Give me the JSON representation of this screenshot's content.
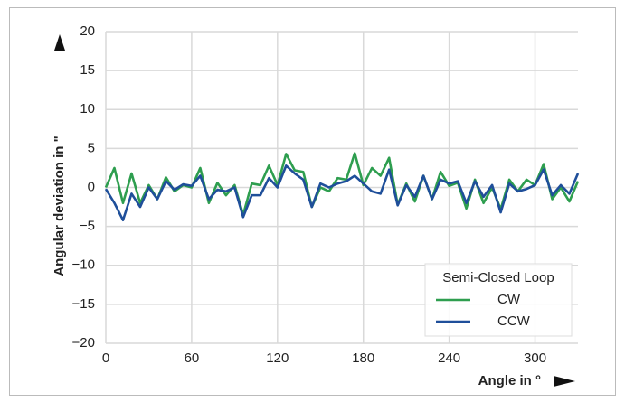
{
  "chart_data": {
    "type": "line",
    "y_label": "Angular deviation in \"",
    "x_label": "Angle in °",
    "legend_title": "Semi-Closed Loop",
    "legend_position": "lower right",
    "grid": true,
    "x": [
      0,
      6,
      12,
      18,
      24,
      30,
      36,
      42,
      48,
      54,
      60,
      66,
      72,
      78,
      84,
      90,
      96,
      102,
      108,
      114,
      120,
      126,
      132,
      138,
      144,
      150,
      156,
      162,
      168,
      174,
      180,
      186,
      192,
      198,
      204,
      210,
      216,
      222,
      228,
      234,
      240,
      246,
      252,
      258,
      264,
      270,
      276,
      282,
      288,
      294,
      300,
      306,
      312,
      318,
      324,
      330
    ],
    "xlim": [
      0,
      330
    ],
    "xticks": [
      0,
      60,
      120,
      180,
      240,
      300
    ],
    "ylim": [
      -20,
      20
    ],
    "yticks": [
      {
        "value": -20,
        "label": "−20"
      },
      {
        "value": -15,
        "label": "−15"
      },
      {
        "value": -10,
        "label": "−10"
      },
      {
        "value": -5,
        "label": "−5"
      },
      0,
      5,
      10,
      15,
      20
    ],
    "series": [
      {
        "name": "CW",
        "color": "#2e9e4f",
        "values": [
          0,
          2.5,
          -2,
          1.8,
          -2,
          0.3,
          -1.5,
          1.3,
          -0.5,
          0.3,
          0,
          2.5,
          -2,
          0.6,
          -1,
          0.3,
          -3.5,
          0.5,
          0.3,
          2.8,
          0.3,
          4.3,
          2.2,
          2,
          -2.5,
          0,
          -0.5,
          1.2,
          1,
          4.4,
          0.3,
          2.5,
          1.5,
          3.8,
          -2.2,
          0.5,
          -1.8,
          1.5,
          -1.5,
          2,
          0.2,
          0.6,
          -2.7,
          1,
          -2,
          0,
          -2.8,
          1,
          -0.5,
          1,
          0.3,
          3,
          -1.5,
          0,
          -1.8,
          0.8
        ]
      },
      {
        "name": "CCW",
        "color": "#1f4f9a",
        "values": [
          -0.2,
          -2,
          -4.2,
          -0.8,
          -2.5,
          0,
          -1.5,
          0.8,
          -0.3,
          0.4,
          0.2,
          1.5,
          -1.5,
          -0.3,
          -0.5,
          0,
          -3.8,
          -1,
          -1,
          1.2,
          0,
          2.8,
          1.8,
          1,
          -2.5,
          0.5,
          0,
          0.5,
          0.8,
          1.5,
          0.5,
          -0.5,
          -0.8,
          2.3,
          -2.3,
          0.3,
          -1.2,
          1.5,
          -1.5,
          1,
          0.5,
          0.8,
          -2,
          0.8,
          -1.2,
          0.3,
          -3.2,
          0.5,
          -0.5,
          -0.2,
          0.3,
          2.3,
          -1,
          0.3,
          -0.8,
          1.8
        ]
      }
    ]
  }
}
